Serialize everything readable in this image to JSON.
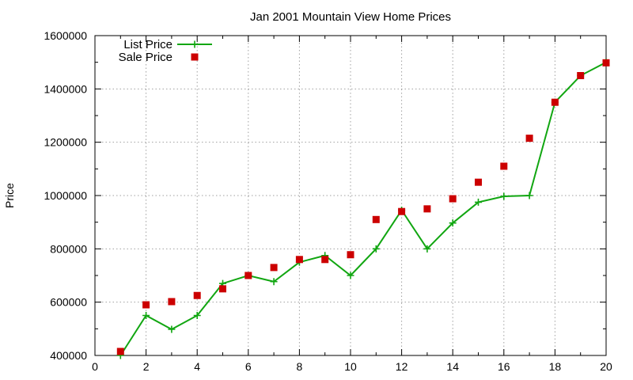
{
  "chart_data": {
    "type": "line",
    "title": "Jan 2001 Mountain View Home Prices",
    "xlabel": "",
    "ylabel": "Price",
    "xlim": [
      0,
      20
    ],
    "ylim": [
      400000,
      1600000
    ],
    "xticks": [
      "0",
      "2",
      "4",
      "6",
      "8",
      "10",
      "12",
      "14",
      "16",
      "18",
      "20"
    ],
    "yticks": [
      "400000",
      "600000",
      "800000",
      "1000000",
      "1200000",
      "1400000",
      "1600000"
    ],
    "grid": true,
    "legend_position": "top-left",
    "x": [
      1,
      2,
      3,
      4,
      5,
      6,
      7,
      8,
      9,
      10,
      11,
      12,
      13,
      14,
      15,
      16,
      17,
      18,
      19,
      20
    ],
    "series": [
      {
        "name": "List Price",
        "style": "lines+points",
        "marker": "plus",
        "color": "#11a611",
        "values": [
          400000,
          550000,
          498000,
          550000,
          670000,
          700000,
          677000,
          750000,
          775000,
          700000,
          800000,
          945000,
          800000,
          897000,
          975000,
          997000,
          1000000,
          1350000,
          1450000,
          1500000
        ]
      },
      {
        "name": "Sale Price",
        "style": "points",
        "marker": "square",
        "color": "#cc0000",
        "values": [
          415000,
          590000,
          602000,
          625000,
          650000,
          700000,
          730000,
          760000,
          760000,
          778000,
          910000,
          940000,
          950000,
          988000,
          1050000,
          1110000,
          1215000,
          1350000,
          1450000,
          1498000
        ]
      }
    ]
  }
}
